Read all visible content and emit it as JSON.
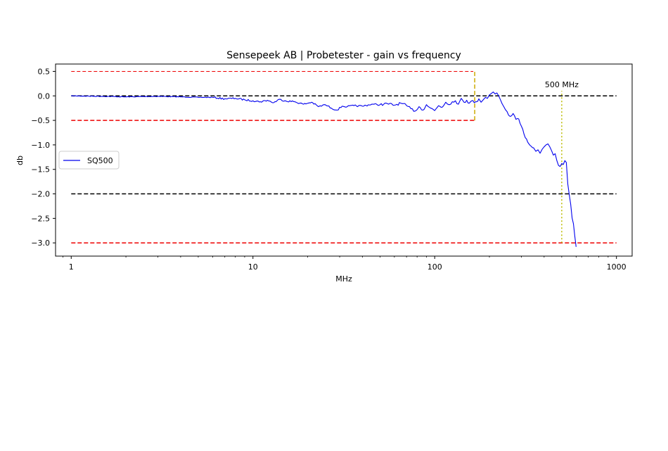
{
  "chart_data": {
    "type": "line",
    "title": "Sensepeek AB | Probetester - gain vs frequency",
    "xlabel": "MHz",
    "ylabel": "db",
    "xscale": "log",
    "xlim": [
      0.82,
      1220
    ],
    "ylim": [
      -3.27,
      0.65
    ],
    "xticks": [
      1,
      10,
      100,
      1000
    ],
    "xtick_labels": [
      "1",
      "10",
      "100",
      "1000"
    ],
    "yticks": [
      0.5,
      0.0,
      -0.5,
      -1.0,
      -1.5,
      -2.0,
      -2.5,
      -3.0
    ],
    "ytick_labels": [
      "0.5",
      "0.0",
      "−0.5",
      "−1.0",
      "−1.5",
      "−2.0",
      "−2.5",
      "−3.0"
    ],
    "grid": false,
    "legend_position": "center-left",
    "series": [
      {
        "name": "SQ500",
        "color": "#0000ee",
        "x": [
          1,
          1.5,
          2,
          3,
          4,
          5,
          6,
          7,
          8,
          9,
          10,
          11,
          12,
          13,
          14,
          15,
          17,
          19,
          21,
          23,
          25,
          27,
          29,
          31,
          33,
          36,
          40,
          45,
          50,
          55,
          60,
          65,
          70,
          74,
          78,
          82,
          86,
          90,
          95,
          100,
          105,
          110,
          115,
          120,
          125,
          130,
          135,
          140,
          145,
          150,
          155,
          160,
          165,
          170,
          175,
          180,
          185,
          190,
          195,
          200,
          205,
          210,
          215,
          220,
          225,
          230,
          240,
          250,
          260,
          270,
          280,
          290,
          300,
          310,
          320,
          330,
          340,
          350,
          360,
          370,
          380,
          390,
          400,
          410,
          420,
          430,
          440,
          450,
          460,
          470,
          480,
          490,
          500,
          510,
          520,
          530,
          540,
          550,
          560,
          570,
          580,
          590,
          600
        ],
        "y": [
          0.0,
          -0.01,
          -0.02,
          -0.01,
          -0.02,
          -0.03,
          -0.03,
          -0.06,
          -0.05,
          -0.08,
          -0.1,
          -0.12,
          -0.09,
          -0.14,
          -0.07,
          -0.1,
          -0.12,
          -0.17,
          -0.13,
          -0.22,
          -0.18,
          -0.25,
          -0.29,
          -0.21,
          -0.22,
          -0.2,
          -0.21,
          -0.17,
          -0.18,
          -0.16,
          -0.19,
          -0.15,
          -0.2,
          -0.26,
          -0.31,
          -0.22,
          -0.29,
          -0.18,
          -0.25,
          -0.3,
          -0.2,
          -0.23,
          -0.13,
          -0.18,
          -0.12,
          -0.1,
          -0.17,
          -0.05,
          -0.13,
          -0.09,
          -0.15,
          -0.1,
          -0.14,
          -0.12,
          -0.06,
          -0.13,
          -0.08,
          -0.03,
          -0.05,
          0.02,
          0.05,
          0.08,
          0.04,
          0.06,
          0.0,
          -0.08,
          -0.22,
          -0.32,
          -0.42,
          -0.36,
          -0.48,
          -0.47,
          -0.62,
          -0.78,
          -0.88,
          -0.98,
          -1.03,
          -1.06,
          -1.13,
          -1.1,
          -1.17,
          -1.09,
          -1.04,
          -1.0,
          -0.98,
          -1.04,
          -1.12,
          -1.21,
          -1.18,
          -1.32,
          -1.42,
          -1.44,
          -1.38,
          -1.4,
          -1.32,
          -1.36,
          -1.8,
          -2.02,
          -2.21,
          -2.49,
          -2.61,
          -2.87,
          -3.08
        ]
      }
    ],
    "reference_lines": [
      {
        "y": 0.5,
        "x_from": 1,
        "x_to": 163,
        "color": "#ee0000",
        "style": "dashed-thin"
      },
      {
        "y": -0.5,
        "x_from": 1,
        "x_to": 166,
        "color": "#ee0000",
        "style": "dashed"
      },
      {
        "y": 0.0,
        "x_from": 1,
        "x_to": 1000,
        "color": "#000000",
        "style": "dashed"
      },
      {
        "y": -2.0,
        "x_from": 1,
        "x_to": 1000,
        "color": "#000000",
        "style": "dashed"
      },
      {
        "y": -3.0,
        "x_from": 1,
        "x_to": 1000,
        "color": "#ee0000",
        "style": "dashed"
      }
    ],
    "vertical_markers": [
      {
        "x": 166,
        "y_from": -0.5,
        "y_to": 0.5,
        "color": "#ccaa00",
        "style": "dashed"
      },
      {
        "x": 500,
        "y_from": -3.0,
        "y_to": 0.1,
        "color": "#bbbb00",
        "style": "dotted"
      }
    ],
    "annotations": [
      {
        "text": "500 MHz",
        "x": 500,
        "y": 0.12
      }
    ]
  }
}
